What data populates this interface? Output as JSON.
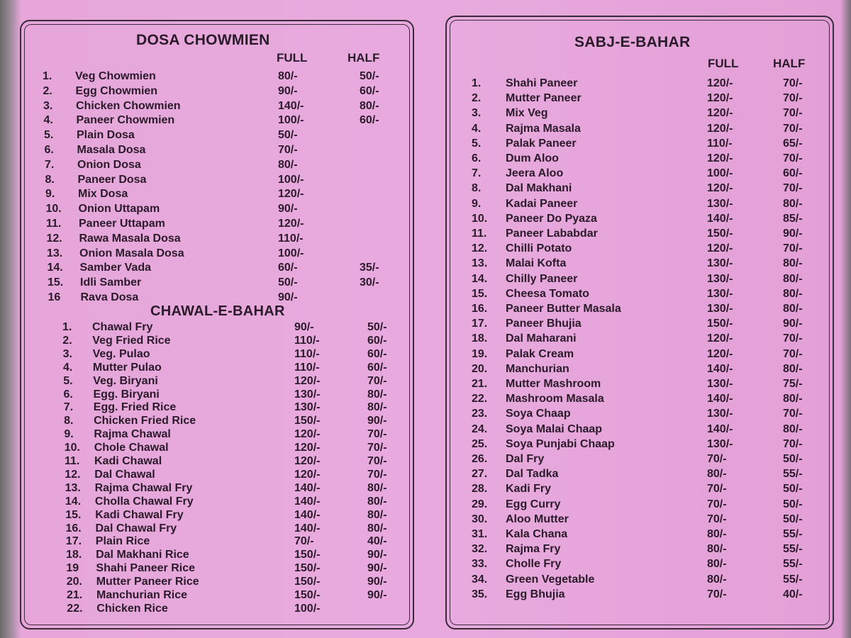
{
  "left": {
    "title": "DOSA CHOWMIEN",
    "col_full": "FULL",
    "col_half": "HALF",
    "items": [
      {
        "no": "1.",
        "name": "Veg Chowmien",
        "full": "80/-",
        "half": "50/-"
      },
      {
        "no": "2.",
        "name": "Egg Chowmien",
        "full": "90/-",
        "half": "60/-"
      },
      {
        "no": "3.",
        "name": "Chicken Chowmien",
        "full": "140/-",
        "half": "80/-"
      },
      {
        "no": "4.",
        "name": "Paneer Chowmien",
        "full": "100/-",
        "half": "60/-"
      },
      {
        "no": "5.",
        "name": "Plain Dosa",
        "full": "50/-",
        "half": ""
      },
      {
        "no": "6.",
        "name": "Masala Dosa",
        "full": "70/-",
        "half": ""
      },
      {
        "no": "7.",
        "name": "Onion Dosa",
        "full": "80/-",
        "half": ""
      },
      {
        "no": "8.",
        "name": "Paneer Dosa",
        "full": "100/-",
        "half": ""
      },
      {
        "no": "9.",
        "name": "Mix Dosa",
        "full": "120/-",
        "half": ""
      },
      {
        "no": "10.",
        "name": "Onion Uttapam",
        "full": "90/-",
        "half": ""
      },
      {
        "no": "11.",
        "name": "Paneer Uttapam",
        "full": "120/-",
        "half": ""
      },
      {
        "no": "12.",
        "name": "Rawa Masala Dosa",
        "full": "110/-",
        "half": ""
      },
      {
        "no": "13.",
        "name": "Onion Masala Dosa",
        "full": "100/-",
        "half": ""
      },
      {
        "no": "14.",
        "name": "Samber Vada",
        "full": "60/-",
        "half": "35/-"
      },
      {
        "no": "15.",
        "name": "Idli Samber",
        "full": "50/-",
        "half": "30/-"
      },
      {
        "no": "16",
        "name": "Rava Dosa",
        "full": "90/-",
        "half": ""
      }
    ],
    "section2_title": "CHAWAL-E-BAHAR",
    "items2": [
      {
        "no": "1.",
        "name": "Chawal Fry",
        "full": "90/-",
        "half": "50/-"
      },
      {
        "no": "2.",
        "name": "Veg Fried Rice",
        "full": "110/-",
        "half": "60/-"
      },
      {
        "no": "3.",
        "name": "Veg. Pulao",
        "full": "110/-",
        "half": "60/-"
      },
      {
        "no": "4.",
        "name": "Mutter Pulao",
        "full": "110/-",
        "half": "60/-"
      },
      {
        "no": "5.",
        "name": "Veg. Biryani",
        "full": "120/-",
        "half": "70/-"
      },
      {
        "no": "6.",
        "name": "Egg. Biryani",
        "full": "130/-",
        "half": "80/-"
      },
      {
        "no": "7.",
        "name": "Egg. Fried Rice",
        "full": "130/-",
        "half": "80/-"
      },
      {
        "no": "8.",
        "name": "Chicken Fried Rice",
        "full": "150/-",
        "half": "90/-"
      },
      {
        "no": "9.",
        "name": "Rajma Chawal",
        "full": "120/-",
        "half": "70/-"
      },
      {
        "no": "10.",
        "name": "Chole Chawal",
        "full": "120/-",
        "half": "70/-"
      },
      {
        "no": "11.",
        "name": "Kadi Chawal",
        "full": "120/-",
        "half": "70/-"
      },
      {
        "no": "12.",
        "name": "Dal Chawal",
        "full": "120/-",
        "half": "70/-"
      },
      {
        "no": "13.",
        "name": "Rajma Chawal Fry",
        "full": "140/-",
        "half": "80/-"
      },
      {
        "no": "14.",
        "name": "Cholla Chawal Fry",
        "full": "140/-",
        "half": "80/-"
      },
      {
        "no": "15.",
        "name": "Kadi Chawal Fry",
        "full": "140/-",
        "half": "80/-"
      },
      {
        "no": "16.",
        "name": "Dal Chawal Fry",
        "full": "140/-",
        "half": "80/-"
      },
      {
        "no": "17.",
        "name": "Plain Rice",
        "full": "70/-",
        "half": "40/-"
      },
      {
        "no": "18.",
        "name": "Dal Makhani Rice",
        "full": "150/-",
        "half": "90/-"
      },
      {
        "no": "19",
        "name": "Shahi Paneer Rice",
        "full": "150/-",
        "half": "90/-"
      },
      {
        "no": "20.",
        "name": "Mutter Paneer Rice",
        "full": "150/-",
        "half": "90/-"
      },
      {
        "no": "21.",
        "name": "Manchurian Rice",
        "full": "150/-",
        "half": "90/-"
      },
      {
        "no": "22.",
        "name": "Chicken Rice",
        "full": "100/-",
        "half": ""
      }
    ]
  },
  "right": {
    "title": "SABJ-E-BAHAR",
    "col_full": "FULL",
    "col_half": "HALF",
    "items": [
      {
        "no": "1.",
        "name": "Shahi Paneer",
        "full": "120/-",
        "half": "70/-"
      },
      {
        "no": "2.",
        "name": "Mutter Paneer",
        "full": "120/-",
        "half": "70/-"
      },
      {
        "no": "3.",
        "name": "Mix Veg",
        "full": "120/-",
        "half": "70/-"
      },
      {
        "no": "4.",
        "name": "Rajma Masala",
        "full": "120/-",
        "half": "70/-"
      },
      {
        "no": "5.",
        "name": "Palak Paneer",
        "full": "110/-",
        "half": "65/-"
      },
      {
        "no": "6.",
        "name": "Dum Aloo",
        "full": "120/-",
        "half": "70/-"
      },
      {
        "no": "7.",
        "name": "Jeera Aloo",
        "full": "100/-",
        "half": "60/-"
      },
      {
        "no": "8.",
        "name": "Dal Makhani",
        "full": "120/-",
        "half": "70/-"
      },
      {
        "no": "9.",
        "name": "Kadai Paneer",
        "full": "130/-",
        "half": "80/-"
      },
      {
        "no": "10.",
        "name": "Paneer Do Pyaza",
        "full": "140/-",
        "half": "85/-"
      },
      {
        "no": "11.",
        "name": "Paneer Lababdar",
        "full": "150/-",
        "half": "90/-"
      },
      {
        "no": "12.",
        "name": "Chilli Potato",
        "full": "120/-",
        "half": "70/-"
      },
      {
        "no": "13.",
        "name": "Malai Kofta",
        "full": "130/-",
        "half": "80/-"
      },
      {
        "no": "14.",
        "name": "Chilly Paneer",
        "full": "130/-",
        "half": "80/-"
      },
      {
        "no": "15.",
        "name": "Cheesa Tomato",
        "full": "130/-",
        "half": "80/-"
      },
      {
        "no": "16.",
        "name": "Paneer Butter Masala",
        "full": "130/-",
        "half": "80/-"
      },
      {
        "no": "17.",
        "name": "Paneer Bhujia",
        "full": "150/-",
        "half": "90/-"
      },
      {
        "no": "18.",
        "name": "Dal Maharani",
        "full": "120/-",
        "half": "70/-"
      },
      {
        "no": "19.",
        "name": "Palak Cream",
        "full": "120/-",
        "half": "70/-"
      },
      {
        "no": "20.",
        "name": "Manchurian",
        "full": "140/-",
        "half": "80/-"
      },
      {
        "no": "21.",
        "name": "Mutter Mashroom",
        "full": "130/-",
        "half": "75/-"
      },
      {
        "no": "22.",
        "name": "Mashroom Masala",
        "full": "140/-",
        "half": "80/-"
      },
      {
        "no": "23.",
        "name": "Soya Chaap",
        "full": "130/-",
        "half": "70/-"
      },
      {
        "no": "24.",
        "name": "Soya Malai Chaap",
        "full": "140/-",
        "half": "80/-"
      },
      {
        "no": "25.",
        "name": "Soya Punjabi Chaap",
        "full": "130/-",
        "half": "70/-"
      },
      {
        "no": "26.",
        "name": "Dal Fry",
        "full": "70/-",
        "half": "50/-"
      },
      {
        "no": "27.",
        "name": "Dal Tadka",
        "full": "80/-",
        "half": "55/-"
      },
      {
        "no": "28.",
        "name": "Kadi Fry",
        "full": "70/-",
        "half": "50/-"
      },
      {
        "no": "29.",
        "name": "Egg Curry",
        "full": "70/-",
        "half": "50/-"
      },
      {
        "no": "30.",
        "name": "Aloo Mutter",
        "full": "70/-",
        "half": "50/-"
      },
      {
        "no": "31.",
        "name": "Kala Chana",
        "full": "80/-",
        "half": "55/-"
      },
      {
        "no": "32.",
        "name": "Rajma Fry",
        "full": "80/-",
        "half": "55/-"
      },
      {
        "no": "33.",
        "name": "Cholle Fry",
        "full": "80/-",
        "half": "55/-"
      },
      {
        "no": "34.",
        "name": "Green Vegetable",
        "full": "80/-",
        "half": "55/-"
      },
      {
        "no": "35.",
        "name": "Egg Bhujia",
        "full": "70/-",
        "half": "40/-"
      }
    ]
  }
}
